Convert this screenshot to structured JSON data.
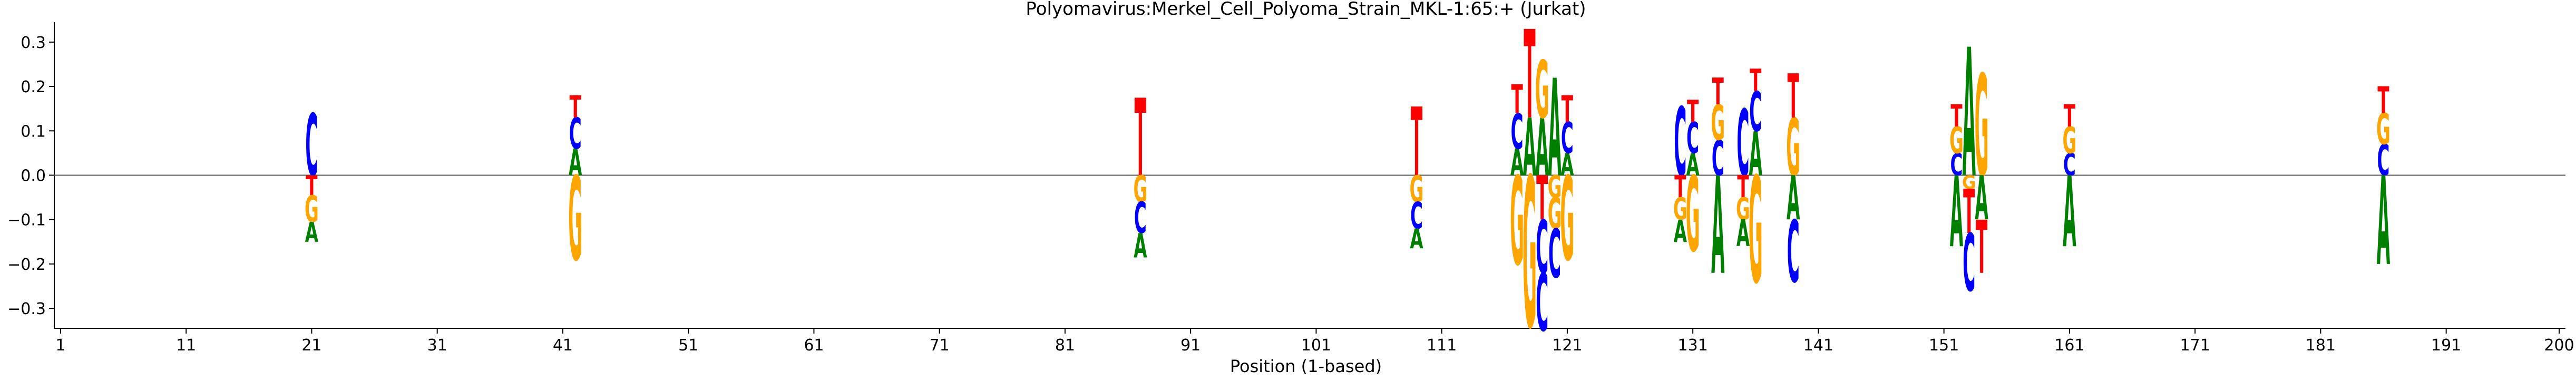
{
  "chart_data": {
    "type": "sequence-logo",
    "title": "Polyomavirus:Merkel_Cell_Polyoma_Strain_MKL-1:65:+  (Jurkat)",
    "xlabel": "Position (1-based)",
    "ylabel": "",
    "xlim": [
      1,
      200
    ],
    "ylim": [
      -0.345,
      0.345
    ],
    "x_ticks": [
      1,
      11,
      21,
      31,
      41,
      51,
      61,
      71,
      81,
      91,
      101,
      111,
      121,
      131,
      141,
      151,
      161,
      171,
      181,
      191,
      200
    ],
    "y_ticks": [
      -0.3,
      -0.2,
      -0.1,
      0.0,
      0.1,
      0.2,
      0.3
    ],
    "y_tick_labels": [
      "−0.3",
      "−0.2",
      "−0.1",
      "0.0",
      "0.1",
      "0.2",
      "0.3"
    ],
    "grid": false,
    "base_colors": {
      "A": "#008000",
      "C": "#0000ff",
      "G": "#ffa500",
      "T": "#ff0000"
    },
    "positions": [
      {
        "x": 21,
        "pos": [
          [
            "C",
            0.14
          ]
        ],
        "neg": [
          [
            "T",
            0.045
          ],
          [
            "G",
            0.06
          ],
          [
            "A",
            0.045
          ]
        ]
      },
      {
        "x": 42,
        "pos": [
          [
            "A",
            0.06
          ],
          [
            "C",
            0.07
          ],
          [
            "T",
            0.05
          ]
        ],
        "neg": [
          [
            "G",
            0.19
          ]
        ]
      },
      {
        "x": 87,
        "pos": [
          [
            "T",
            0.175
          ]
        ],
        "neg": [
          [
            "G",
            0.06
          ],
          [
            "C",
            0.07
          ],
          [
            "A",
            0.055
          ]
        ]
      },
      {
        "x": 109,
        "pos": [
          [
            "T",
            0.155
          ]
        ],
        "neg": [
          [
            "G",
            0.06
          ],
          [
            "C",
            0.06
          ],
          [
            "A",
            0.045
          ]
        ]
      },
      {
        "x": 117,
        "pos": [
          [
            "A",
            0.06
          ],
          [
            "C",
            0.08
          ],
          [
            "T",
            0.065
          ]
        ],
        "neg": [
          [
            "G",
            0.2
          ]
        ]
      },
      {
        "x": 118,
        "pos": [
          [
            "A",
            0.13
          ],
          [
            "T",
            0.2
          ]
        ],
        "neg": [
          [
            "G",
            0.34
          ]
        ]
      },
      {
        "x": 119,
        "pos": [
          [
            "A",
            0.13
          ],
          [
            "G",
            0.13
          ]
        ],
        "neg": [
          [
            "T",
            0.1
          ],
          [
            "C",
            0.12
          ],
          [
            "C",
            0.13
          ]
        ]
      },
      {
        "x": 120,
        "pos": [
          [
            "A",
            0.22
          ]
        ],
        "neg": [
          [
            "G",
            0.05
          ],
          [
            "G",
            0.07
          ],
          [
            "C",
            0.11
          ]
        ]
      },
      {
        "x": 121,
        "pos": [
          [
            "A",
            0.05
          ],
          [
            "C",
            0.07
          ],
          [
            "T",
            0.06
          ]
        ],
        "neg": [
          [
            "G",
            0.19
          ]
        ]
      },
      {
        "x": 130,
        "pos": [
          [
            "C",
            0.155
          ]
        ],
        "neg": [
          [
            "T",
            0.05
          ],
          [
            "G",
            0.05
          ],
          [
            "A",
            0.05
          ]
        ]
      },
      {
        "x": 131,
        "pos": [
          [
            "A",
            0.05
          ],
          [
            "C",
            0.07
          ],
          [
            "T",
            0.05
          ]
        ],
        "neg": [
          [
            "G",
            0.17
          ]
        ]
      },
      {
        "x": 133,
        "pos": [
          [
            "C",
            0.08
          ],
          [
            "G",
            0.08
          ],
          [
            "T",
            0.06
          ]
        ],
        "neg": [
          [
            "A",
            0.22
          ]
        ]
      },
      {
        "x": 135,
        "pos": [
          [
            "C",
            0.15
          ]
        ],
        "neg": [
          [
            "T",
            0.05
          ],
          [
            "G",
            0.05
          ],
          [
            "A",
            0.06
          ]
        ]
      },
      {
        "x": 136,
        "pos": [
          [
            "A",
            0.1
          ],
          [
            "C",
            0.09
          ],
          [
            "T",
            0.05
          ]
        ],
        "neg": [
          [
            "G",
            0.24
          ]
        ]
      },
      {
        "x": 139,
        "pos": [
          [
            "G",
            0.13
          ],
          [
            "T",
            0.1
          ]
        ],
        "neg": [
          [
            "A",
            0.1
          ],
          [
            "C",
            0.14
          ]
        ]
      },
      {
        "x": 152,
        "pos": [
          [
            "C",
            0.05
          ],
          [
            "G",
            0.06
          ],
          [
            "T",
            0.05
          ]
        ],
        "neg": [
          [
            "A",
            0.16
          ]
        ]
      },
      {
        "x": 153,
        "pos": [
          [
            "A",
            0.29
          ]
        ],
        "neg": [
          [
            "G",
            0.03
          ],
          [
            "T",
            0.1
          ],
          [
            "C",
            0.13
          ]
        ]
      },
      {
        "x": 154,
        "pos": [
          [
            "G",
            0.23
          ]
        ],
        "neg": [
          [
            "A",
            0.1
          ],
          [
            "T",
            0.12
          ]
        ]
      },
      {
        "x": 161,
        "pos": [
          [
            "C",
            0.05
          ],
          [
            "G",
            0.06
          ],
          [
            "T",
            0.05
          ]
        ],
        "neg": [
          [
            "A",
            0.16
          ]
        ]
      },
      {
        "x": 186,
        "pos": [
          [
            "C",
            0.07
          ],
          [
            "G",
            0.07
          ],
          [
            "T",
            0.06
          ]
        ],
        "neg": [
          [
            "A",
            0.2
          ]
        ]
      }
    ]
  }
}
